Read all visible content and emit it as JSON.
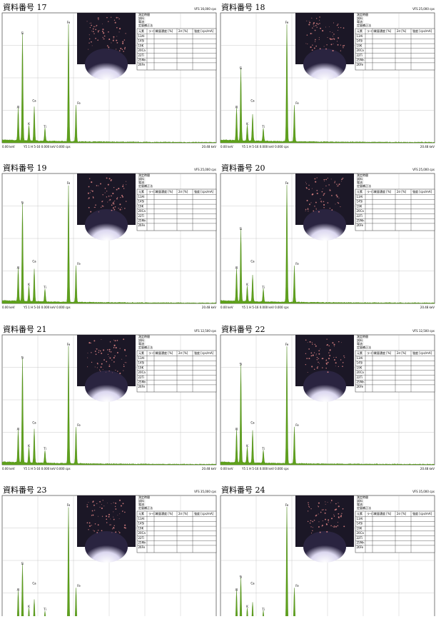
{
  "panels": [
    {
      "title": "資料番号 17",
      "scale": "VFS 16,000 cps"
    },
    {
      "title": "資料番号 18",
      "scale": "VFS 25,000 cps"
    },
    {
      "title": "資料番号 19",
      "scale": "VFS 25,000 cps"
    },
    {
      "title": "資料番号 20",
      "scale": "VFS 25,000 cps"
    },
    {
      "title": "資料番号 21",
      "scale": "VFS 12,500 cps"
    },
    {
      "title": "資料番号 22",
      "scale": "VFS 12,500 cps"
    },
    {
      "title": "資料番号 23",
      "scale": "VFS 35,000 cps"
    },
    {
      "title": "資料番号 24",
      "scale": "VFS 35,000 cps"
    }
  ],
  "axis_left": "0.00 keV",
  "axis_mid": "Y5 1 H   5-16  0.000 keV   0.000 cps",
  "axis_right": "20.48 keV",
  "peaks": [
    "Al",
    "Si",
    "K",
    "Ca",
    "Ti",
    "Fe",
    "Fe"
  ],
  "table_head": [
    "測定時間",
    "試料",
    "電流",
    "定量補正法"
  ],
  "table_cols": [
    "元素",
    "ライン",
    "質量濃度 [%]",
    "2σ [%]",
    "強度 [cps/mA]"
  ],
  "elements": [
    "13Al",
    "14Si",
    "19K",
    "20Ca",
    "22Ti",
    "25Mn",
    "26Fe"
  ]
}
